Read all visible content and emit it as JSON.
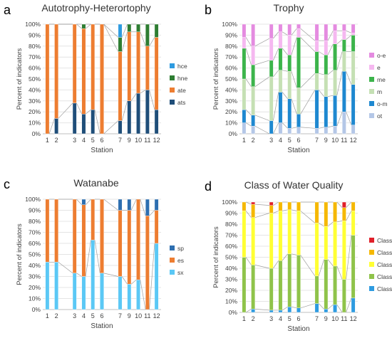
{
  "chart_data": [
    {
      "panel_label": "a",
      "type": "bar",
      "stacked": true,
      "title": "Autotrophy-Heterortophy",
      "xlabel": "Station",
      "ylabel": "Percent of indicators",
      "ylim": [
        0,
        100
      ],
      "ytick_labels": [
        "0%",
        "10%",
        "20%",
        "30%",
        "40%",
        "50%",
        "60%",
        "70%",
        "80%",
        "90%",
        "100%"
      ],
      "categories": [
        "1",
        "2",
        "",
        "3",
        "4",
        "5",
        "6",
        "",
        "7",
        "9",
        "10",
        "11",
        "12"
      ],
      "legend_position": "right",
      "series": [
        {
          "name": "ats",
          "color": "#1f4e79",
          "values": [
            0,
            14,
            null,
            28,
            18,
            22,
            0,
            null,
            12,
            30,
            37,
            40,
            22
          ]
        },
        {
          "name": "ate",
          "color": "#ed7d31",
          "values": [
            100,
            86,
            null,
            72,
            78,
            78,
            100,
            null,
            63,
            63,
            56,
            40,
            66
          ]
        },
        {
          "name": "hne",
          "color": "#2e7d32",
          "values": [
            0,
            0,
            null,
            0,
            4,
            0,
            0,
            null,
            13,
            7,
            7,
            20,
            12
          ]
        },
        {
          "name": "hce",
          "color": "#2e9be0",
          "values": [
            0,
            0,
            null,
            0,
            0,
            0,
            0,
            null,
            12,
            0,
            0,
            0,
            0
          ]
        }
      ]
    },
    {
      "panel_label": "b",
      "type": "bar",
      "stacked": true,
      "title": "Trophy",
      "xlabel": "Station",
      "ylabel": "Percent of indicators",
      "ylim": [
        0,
        100
      ],
      "ytick_labels": [
        "0%",
        "10%",
        "20%",
        "30%",
        "40%",
        "50%",
        "60%",
        "70%",
        "80%",
        "90%",
        "100%"
      ],
      "categories": [
        "1",
        "2",
        "",
        "3",
        "4",
        "5",
        "6",
        "",
        "7",
        "9",
        "10",
        "11",
        "12"
      ],
      "legend_position": "right",
      "series": [
        {
          "name": "ot",
          "color": "#b4c7e7",
          "values": [
            10,
            7,
            null,
            0,
            10,
            5,
            6,
            null,
            5,
            6,
            7,
            20,
            8
          ]
        },
        {
          "name": "o-m",
          "color": "#1e88d0",
          "values": [
            12,
            10,
            null,
            12,
            28,
            27,
            12,
            null,
            35,
            28,
            28,
            37,
            37
          ]
        },
        {
          "name": "m",
          "color": "#c5e0b4",
          "values": [
            28,
            26,
            null,
            40,
            20,
            25,
            24,
            null,
            15,
            20,
            23,
            18,
            30
          ]
        },
        {
          "name": "me",
          "color": "#3cb44b",
          "values": [
            28,
            20,
            null,
            15,
            20,
            15,
            46,
            null,
            20,
            18,
            24,
            11,
            15
          ]
        },
        {
          "name": "e",
          "color": "#f5b8f0",
          "values": [
            10,
            17,
            null,
            20,
            15,
            18,
            8,
            null,
            10,
            13,
            12,
            8,
            2
          ]
        },
        {
          "name": "o-e",
          "color": "#e48be0",
          "values": [
            12,
            20,
            null,
            13,
            7,
            10,
            4,
            null,
            15,
            15,
            6,
            6,
            8
          ]
        }
      ]
    },
    {
      "panel_label": "c",
      "type": "bar",
      "stacked": true,
      "title": "Watanabe",
      "xlabel": "Station",
      "ylabel": "Percent of indicators",
      "ylim": [
        0,
        100
      ],
      "ytick_labels": [
        "0%",
        "10%",
        "20%",
        "30%",
        "40%",
        "50%",
        "60%",
        "70%",
        "80%",
        "90%",
        "100%"
      ],
      "categories": [
        "1",
        "2",
        "",
        "3",
        "4",
        "5",
        "6",
        "",
        "7",
        "9",
        "10",
        "11",
        "12"
      ],
      "legend_position": "right",
      "series": [
        {
          "name": "sx",
          "color": "#5bc8f5",
          "values": [
            43,
            43,
            null,
            33,
            30,
            63,
            33,
            null,
            30,
            23,
            27,
            0,
            60
          ]
        },
        {
          "name": "es",
          "color": "#ed7d31",
          "values": [
            57,
            57,
            null,
            67,
            65,
            37,
            67,
            null,
            60,
            67,
            73,
            85,
            30
          ]
        },
        {
          "name": "sp",
          "color": "#2e6fb0",
          "values": [
            0,
            0,
            null,
            0,
            5,
            0,
            0,
            null,
            10,
            10,
            0,
            15,
            10
          ]
        }
      ]
    },
    {
      "panel_label": "d",
      "type": "bar",
      "stacked": true,
      "title": "Class of Water Quality",
      "xlabel": "Station",
      "ylabel": "Percent of indicators",
      "ylim": [
        0,
        100
      ],
      "ytick_labels": [
        "0%",
        "10%",
        "20%",
        "30%",
        "40%",
        "50%",
        "60%",
        "70%",
        "80%",
        "90%",
        "100%"
      ],
      "categories": [
        "1",
        "2",
        "",
        "3",
        "4",
        "5",
        "6",
        "",
        "7",
        "9",
        "10",
        "11",
        "12"
      ],
      "legend_position": "right",
      "series": [
        {
          "name": "Class 1",
          "color": "#2e9be0",
          "values": [
            0,
            3,
            null,
            2,
            2,
            5,
            4,
            null,
            8,
            3,
            7,
            0,
            13
          ]
        },
        {
          "name": "Class 2",
          "color": "#8fc34a",
          "values": [
            50,
            40,
            null,
            38,
            45,
            48,
            48,
            null,
            25,
            45,
            35,
            30,
            57
          ]
        },
        {
          "name": "Class 3",
          "color": "#ffff33",
          "values": [
            42,
            43,
            null,
            50,
            45,
            40,
            40,
            null,
            48,
            30,
            40,
            53,
            22
          ]
        },
        {
          "name": "Class 4",
          "color": "#f5b800",
          "values": [
            8,
            12,
            null,
            7,
            8,
            7,
            8,
            null,
            19,
            22,
            18,
            12,
            8
          ]
        },
        {
          "name": "Class 5",
          "color": "#e0202a",
          "values": [
            0,
            2,
            null,
            3,
            0,
            0,
            0,
            null,
            0,
            0,
            0,
            5,
            0
          ]
        }
      ]
    }
  ]
}
